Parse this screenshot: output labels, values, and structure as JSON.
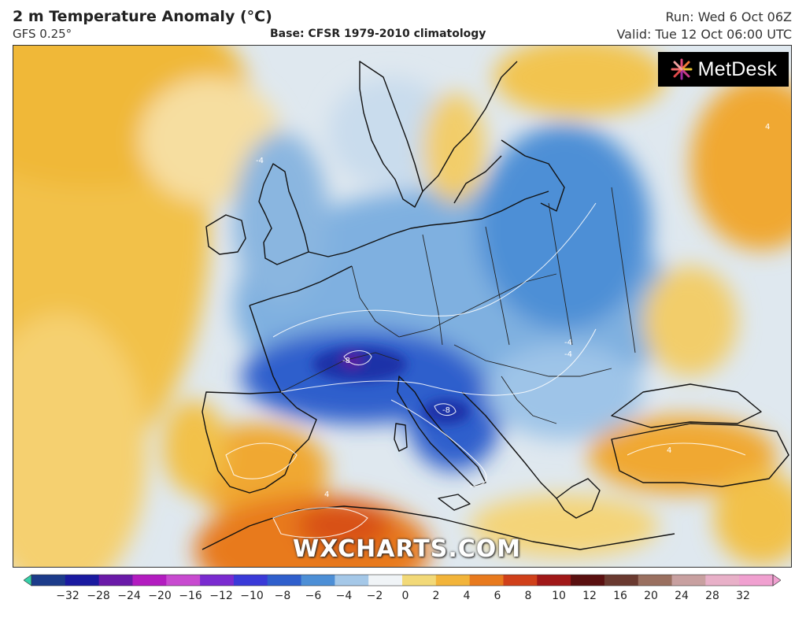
{
  "header": {
    "title": "2 m Temperature Anomaly (°C)",
    "model": "GFS 0.25°",
    "base": "Base: CFSR 1979-2010 climatology",
    "run": "Run: Wed 6 Oct 06Z",
    "valid": "Valid: Tue 12 Oct 06:00 UTC"
  },
  "logo": {
    "text": "MetDesk",
    "icon": "starburst-logo-icon"
  },
  "watermark": "WXCHARTS.COM",
  "colorbar": {
    "ticks": [
      "−32",
      "−28",
      "−24",
      "−20",
      "−16",
      "−12",
      "−10",
      "−8",
      "−6",
      "−4",
      "−2",
      "0",
      "2",
      "4",
      "6",
      "8",
      "10",
      "12",
      "16",
      "20",
      "24",
      "28",
      "32"
    ],
    "colors": [
      "#36d0a8",
      "#1c3b8a",
      "#1a1aa0",
      "#6a1aa8",
      "#b31cc0",
      "#c84ad0",
      "#7a2bd0",
      "#3a3ad8",
      "#2f5fcc",
      "#4d8fd6",
      "#a5c8e8",
      "#f0f4f7",
      "#f2d978",
      "#f2b43a",
      "#e87a1e",
      "#d0401a",
      "#a01818",
      "#5a1010",
      "#6a3a30",
      "#9a7060",
      "#c8a0a0",
      "#e8b0c8",
      "#f0a0d0"
    ]
  },
  "contour_labels": [
    {
      "text": "-4",
      "x": -4
    },
    {
      "text": "-8",
      "x": -8
    },
    {
      "text": "4",
      "x": 4
    }
  ],
  "colors": {
    "coast": "#111111",
    "warm_anomaly": "#f0b030",
    "cold_anomaly": "#2f5fcc",
    "strong_cold": "#1a30a8",
    "hot_anomaly": "#e06a1a"
  }
}
